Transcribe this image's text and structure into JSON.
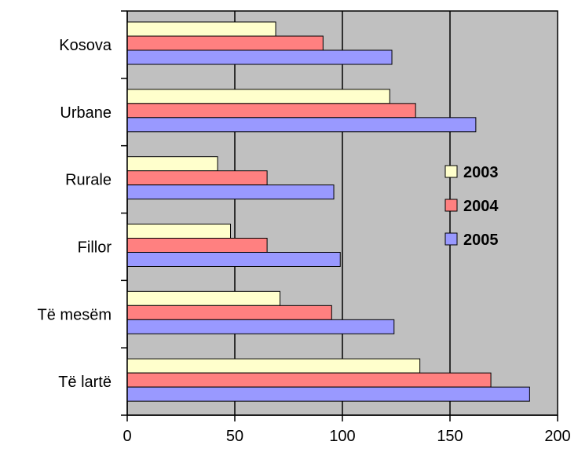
{
  "chart_data": {
    "type": "bar",
    "orientation": "horizontal",
    "categories": [
      "Kosova",
      "Urbane",
      "Rurale",
      "Fillor",
      "Të mesëm",
      "Të lartë"
    ],
    "series": [
      {
        "name": "2003",
        "color": "#ffffcc",
        "values": [
          69,
          122,
          42,
          48,
          71,
          136
        ]
      },
      {
        "name": "2004",
        "color": "#ff8080",
        "values": [
          91,
          134,
          65,
          65,
          95,
          169
        ]
      },
      {
        "name": "2005",
        "color": "#9999ff",
        "values": [
          123,
          162,
          96,
          99,
          124,
          187
        ]
      }
    ],
    "x_ticks": [
      "0",
      "50",
      "100",
      "150",
      "200"
    ],
    "xlim": [
      0,
      200
    ],
    "plot_background": "#c0c0c0",
    "grid": "vertical",
    "legend_position": "right"
  }
}
